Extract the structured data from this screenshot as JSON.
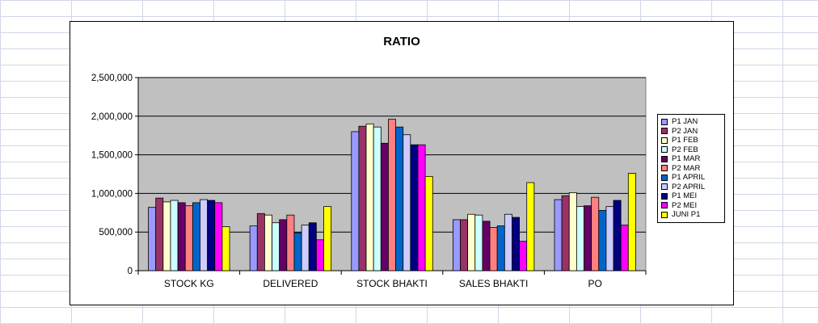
{
  "chart_data": {
    "type": "bar",
    "title": "RATIO",
    "xlabel": "",
    "ylabel": "",
    "ylim": [
      0,
      2500000
    ],
    "yticks": [
      0,
      500000,
      1000000,
      1500000,
      2000000,
      2500000
    ],
    "ytick_labels": [
      "0",
      "500,000",
      "1,000,000",
      "1,500,000",
      "2,000,000",
      "2,500,000"
    ],
    "grid": true,
    "legend_position": "right",
    "plot_background": "#c0c0c0",
    "categories": [
      "STOCK KG",
      "DELIVERED",
      "STOCK BHAKTI",
      "SALES BHAKTI",
      "PO"
    ],
    "series": [
      {
        "name": "P1 JAN",
        "color": "#9999ff",
        "values": [
          820000,
          580000,
          1800000,
          660000,
          920000
        ]
      },
      {
        "name": "P2 JAN",
        "color": "#993366",
        "values": [
          940000,
          740000,
          1870000,
          660000,
          970000
        ]
      },
      {
        "name": "P1 FEB",
        "color": "#ffffcc",
        "values": [
          890000,
          720000,
          1900000,
          730000,
          1010000
        ]
      },
      {
        "name": "P2 FEB",
        "color": "#ccffff",
        "values": [
          910000,
          620000,
          1860000,
          720000,
          830000
        ]
      },
      {
        "name": "P1 MAR",
        "color": "#660066",
        "values": [
          880000,
          660000,
          1650000,
          640000,
          840000
        ]
      },
      {
        "name": "P2 MAR",
        "color": "#ff8080",
        "values": [
          840000,
          720000,
          1960000,
          560000,
          950000
        ]
      },
      {
        "name": "P1 APRIL",
        "color": "#0066cc",
        "values": [
          880000,
          490000,
          1860000,
          580000,
          780000
        ]
      },
      {
        "name": "P2 APRIL",
        "color": "#ccccff",
        "values": [
          920000,
          590000,
          1760000,
          730000,
          830000
        ]
      },
      {
        "name": "P1 MEI",
        "color": "#000080",
        "values": [
          910000,
          620000,
          1630000,
          690000,
          910000
        ]
      },
      {
        "name": "P2 MEI",
        "color": "#ff00ff",
        "values": [
          880000,
          400000,
          1630000,
          380000,
          590000
        ]
      },
      {
        "name": "JUNI P1",
        "color": "#ffff00",
        "values": [
          570000,
          830000,
          1220000,
          1140000,
          1260000
        ]
      }
    ]
  }
}
